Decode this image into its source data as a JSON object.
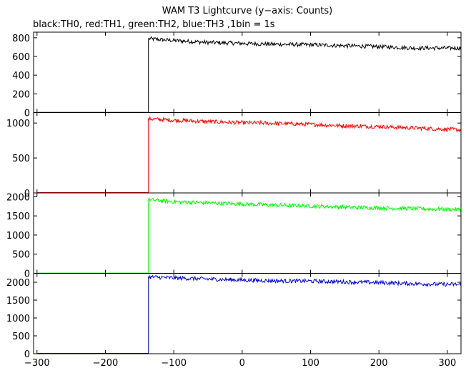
{
  "title": "WAM T3 Lightcurve (y−axis: Counts)",
  "subtitle": "black:TH0, red:TH1, green:TH2, blue:TH3 ,1bin = 1s",
  "chart_data": [
    {
      "type": "line",
      "series": [
        {
          "name": "TH0",
          "color": "#000000",
          "x": [
            -300,
            -137,
            -136,
            -100,
            -50,
            0,
            50,
            100,
            150,
            200,
            250,
            300,
            320
          ],
          "y": [
            2,
            2,
            790,
            770,
            750,
            740,
            730,
            725,
            715,
            705,
            690,
            690,
            690
          ]
        }
      ],
      "xlim": [
        -305,
        320
      ],
      "ylim": [
        0,
        860
      ],
      "yticks": [
        0,
        200,
        400,
        600,
        800
      ],
      "ytick_labels": [
        "0",
        "200",
        "400",
        "600",
        "800"
      ]
    },
    {
      "type": "line",
      "series": [
        {
          "name": "TH1",
          "color": "#ff0000",
          "x": [
            -300,
            -137,
            -136,
            -100,
            -50,
            0,
            50,
            100,
            150,
            200,
            250,
            300,
            320
          ],
          "y": [
            5,
            5,
            1060,
            1040,
            1020,
            1005,
            995,
            980,
            960,
            950,
            930,
            910,
            900
          ]
        }
      ],
      "xlim": [
        -305,
        320
      ],
      "ylim": [
        0,
        1150
      ],
      "yticks": [
        0,
        500,
        1000
      ],
      "ytick_labels": [
        "0",
        "500",
        "1000"
      ]
    },
    {
      "type": "line",
      "series": [
        {
          "name": "TH2",
          "color": "#00ff00",
          "x": [
            -300,
            -137,
            -136,
            -100,
            -50,
            0,
            50,
            100,
            150,
            200,
            250,
            300,
            320
          ],
          "y": [
            8,
            8,
            1920,
            1870,
            1840,
            1810,
            1780,
            1760,
            1730,
            1710,
            1690,
            1670,
            1670
          ]
        }
      ],
      "xlim": [
        -305,
        320
      ],
      "ylim": [
        0,
        2100
      ],
      "yticks": [
        0,
        500,
        1000,
        1500,
        2000
      ],
      "ytick_labels": [
        "0",
        "500",
        "1000",
        "1500",
        "2000"
      ]
    },
    {
      "type": "line",
      "series": [
        {
          "name": "TH3",
          "color": "#0000cc",
          "x": [
            -300,
            -137,
            -136,
            -100,
            -50,
            0,
            50,
            100,
            150,
            200,
            250,
            300,
            320
          ],
          "y": [
            10,
            10,
            2150,
            2120,
            2090,
            2060,
            2040,
            2030,
            2010,
            1990,
            1960,
            1940,
            1940
          ]
        }
      ],
      "xlim": [
        -305,
        320
      ],
      "ylim": [
        0,
        2250
      ],
      "yticks": [
        0,
        500,
        1000,
        1500,
        2000
      ],
      "ytick_labels": [
        "0",
        "500",
        "1000",
        "1500",
        "2000"
      ],
      "xticks": [
        -300,
        -200,
        -100,
        0,
        100,
        200,
        300
      ],
      "xtick_labels": [
        "−300",
        "−200",
        "−100",
        "0",
        "100",
        "200",
        "300"
      ]
    }
  ]
}
